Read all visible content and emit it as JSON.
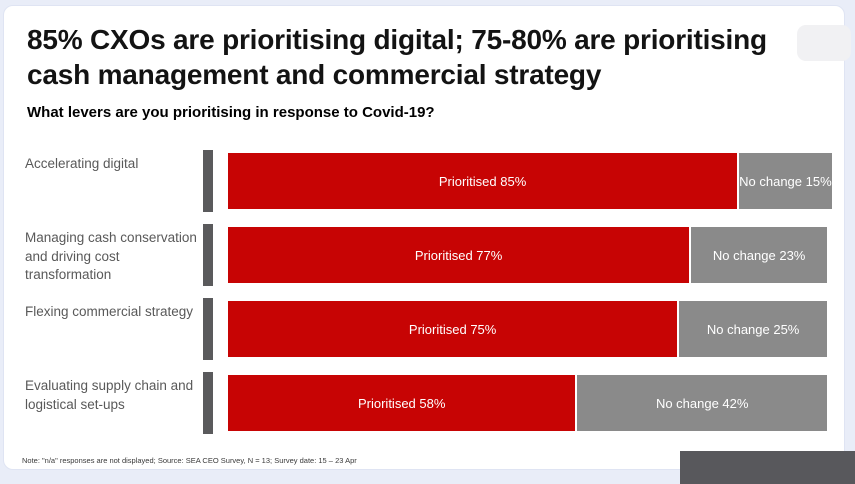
{
  "header": {
    "title_line1": "85% CXOs are prioritising digital; 75-80% are prioritising",
    "title_line2": "cash management and commercial strategy",
    "question": "What levers are you prioritising in response to Covid-19?"
  },
  "chart_data": {
    "type": "bar",
    "orientation": "horizontal",
    "stacked": true,
    "xlim": [
      0,
      100
    ],
    "grid": false,
    "legend_position": "none (labels inside bars)",
    "categories": [
      "Accelerating digital",
      "Managing cash conservation and driving cost transformation",
      "Flexing commercial strategy",
      "Evaluating supply chain and logistical set-ups"
    ],
    "series": [
      {
        "name": "Prioritised",
        "color": "#c70404",
        "values": [
          85,
          77,
          75,
          58
        ]
      },
      {
        "name": "No change",
        "color": "#8a8a8a",
        "values": [
          15,
          23,
          25,
          42
        ]
      }
    ],
    "segment_labels": [
      [
        "Prioritised 85%",
        "No change 15%"
      ],
      [
        "Prioritised 77%",
        "No change 23%"
      ],
      [
        "Prioritised 75%",
        "No change 25%"
      ],
      [
        "Prioritised 58%",
        "No change 42%"
      ]
    ]
  },
  "footer": {
    "note": "Note: \"n/a\" responses are not displayed; Source: SEA CEO Survey, N = 13; Survey date: 15 – 23 Apr"
  },
  "colors": {
    "prioritised": "#c70404",
    "no_change": "#8a8a8a",
    "tick": "#5a5a5c",
    "category_label": "#595959",
    "watermark_block": "#58585c"
  }
}
